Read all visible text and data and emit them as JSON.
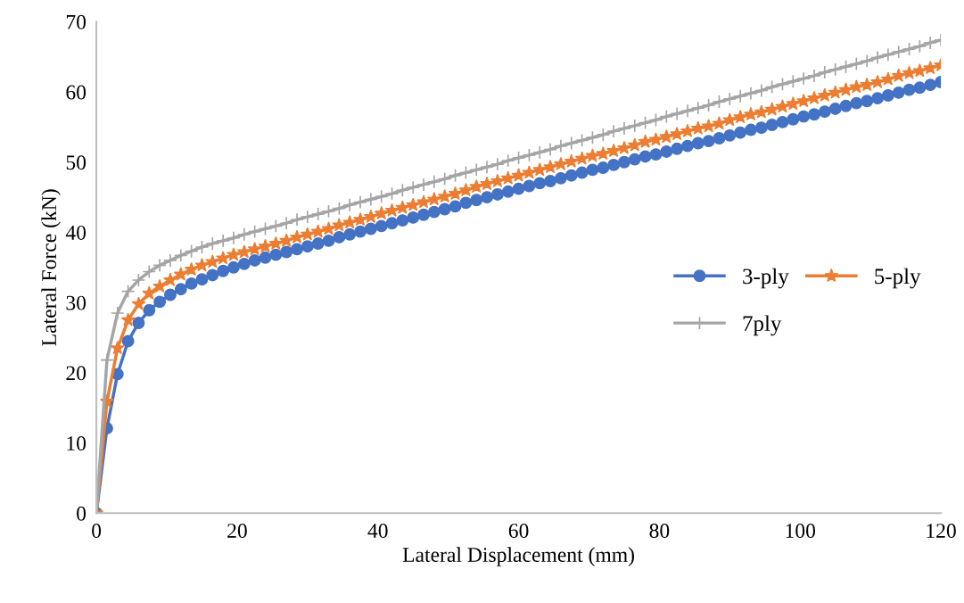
{
  "chart_data": {
    "type": "line",
    "xlabel": "Lateral Displacement (mm)",
    "ylabel": "Lateral Force (kN)",
    "x": [
      0,
      1.5,
      3,
      4.5,
      6,
      7.5,
      9,
      10.5,
      12,
      13.5,
      15,
      16.5,
      18,
      19.5,
      21,
      22.5,
      24,
      25.5,
      27,
      28.5,
      30,
      31.5,
      33,
      34.5,
      36,
      37.5,
      39,
      40.5,
      42,
      43.5,
      45,
      46.5,
      48,
      49.5,
      51,
      52.5,
      54,
      55.5,
      57,
      58.5,
      60,
      61.5,
      63,
      64.5,
      66,
      67.5,
      69,
      70.5,
      72,
      73.5,
      75,
      76.5,
      78,
      79.5,
      81,
      82.5,
      84,
      85.5,
      87,
      88.5,
      90,
      91.5,
      93,
      94.5,
      96,
      97.5,
      99,
      100.5,
      102,
      103.5,
      105,
      106.5,
      108,
      109.5,
      111,
      112.5,
      114,
      115.5,
      117,
      118.5,
      120
    ],
    "series": [
      {
        "name": "3-ply",
        "color": "#4472c4",
        "marker": "circle",
        "values": [
          0,
          12.1,
          19.8,
          24.5,
          27.1,
          28.9,
          30.1,
          31.1,
          31.9,
          32.7,
          33.3,
          33.9,
          34.5,
          35.0,
          35.5,
          36.0,
          36.4,
          36.8,
          37.2,
          37.6,
          38.0,
          38.4,
          38.8,
          39.3,
          39.7,
          40.1,
          40.5,
          40.9,
          41.3,
          41.7,
          42.1,
          42.5,
          42.9,
          43.3,
          43.7,
          44.2,
          44.6,
          45.0,
          45.4,
          45.8,
          46.2,
          46.6,
          47.0,
          47.3,
          47.7,
          48.1,
          48.5,
          48.9,
          49.2,
          49.6,
          50.0,
          50.4,
          50.8,
          51.1,
          51.5,
          51.9,
          52.3,
          52.7,
          53.0,
          53.4,
          53.8,
          54.2,
          54.6,
          54.9,
          55.3,
          55.7,
          56.1,
          56.5,
          56.8,
          57.2,
          57.6,
          58.0,
          58.4,
          58.7,
          59.1,
          59.5,
          59.9,
          60.3,
          60.6,
          61.0,
          61.4
        ]
      },
      {
        "name": "5-ply",
        "color": "#ed7d31",
        "marker": "star",
        "values": [
          0,
          15.9,
          23.5,
          27.5,
          29.8,
          31.3,
          32.3,
          33.2,
          34.0,
          34.7,
          35.3,
          35.8,
          36.3,
          36.8,
          37.2,
          37.6,
          38.0,
          38.4,
          38.8,
          39.3,
          39.7,
          40.1,
          40.5,
          41.0,
          41.4,
          41.8,
          42.2,
          42.7,
          43.1,
          43.5,
          43.9,
          44.3,
          44.7,
          45.1,
          45.5,
          46.0,
          46.5,
          46.9,
          47.3,
          47.7,
          48.1,
          48.5,
          48.9,
          49.3,
          49.7,
          50.1,
          50.5,
          50.9,
          51.2,
          51.6,
          52.0,
          52.4,
          52.9,
          53.2,
          53.6,
          54.0,
          54.4,
          54.8,
          55.1,
          55.5,
          56.0,
          56.4,
          56.8,
          57.1,
          57.5,
          57.9,
          58.3,
          58.7,
          59.1,
          59.5,
          59.9,
          60.3,
          60.7,
          61.0,
          61.4,
          61.8,
          62.3,
          62.7,
          63.0,
          63.4,
          63.8
        ]
      },
      {
        "name": "7ply",
        "color": "#a5a5a5",
        "marker": "cross",
        "values": [
          0,
          21.8,
          28.5,
          31.6,
          33.2,
          34.4,
          35.3,
          36.0,
          36.7,
          37.3,
          37.9,
          38.4,
          38.8,
          39.2,
          39.7,
          40.1,
          40.5,
          40.9,
          41.3,
          41.8,
          42.2,
          42.6,
          43.0,
          43.4,
          43.9,
          44.3,
          44.7,
          45.1,
          45.5,
          46.0,
          46.4,
          46.8,
          47.2,
          47.6,
          48.1,
          48.5,
          48.9,
          49.3,
          49.7,
          50.2,
          50.6,
          51.0,
          51.4,
          51.8,
          52.3,
          52.7,
          53.1,
          53.5,
          53.9,
          54.4,
          54.8,
          55.2,
          55.6,
          56.0,
          56.5,
          56.9,
          57.3,
          57.7,
          58.1,
          58.6,
          59.0,
          59.4,
          59.8,
          60.2,
          60.7,
          61.1,
          61.5,
          61.9,
          62.3,
          62.8,
          63.2,
          63.6,
          64.0,
          64.4,
          64.9,
          65.3,
          65.7,
          66.1,
          66.5,
          67.0,
          67.4
        ]
      }
    ],
    "xlim": [
      0,
      120
    ],
    "xticks": [
      0,
      20,
      40,
      60,
      80,
      100,
      120
    ],
    "ylim": [
      0,
      70
    ],
    "yticks": [
      0,
      10,
      20,
      30,
      40,
      50,
      60,
      70
    ],
    "grid": false,
    "legend": "right",
    "line_style": "solid"
  }
}
